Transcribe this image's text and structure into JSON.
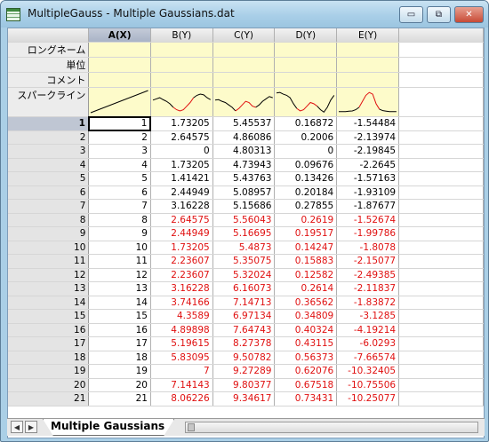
{
  "window": {
    "title": "MultipleGauss - Multiple Gaussians.dat",
    "minimize_glyph": "▭",
    "restore_glyph": "⧉",
    "close_glyph": "✕"
  },
  "columns": [
    "A(X)",
    "B(Y)",
    "C(Y)",
    "D(Y)",
    "E(Y)"
  ],
  "meta_labels": {
    "long_name": "ロングネーム",
    "units": "単位",
    "comment": "コメント",
    "sparkline": "スパークライン"
  },
  "sparklines": {
    "line_color": "#e01010",
    "B": [
      0.6,
      0.65,
      0.7,
      0.62,
      0.55,
      0.45,
      0.3,
      0.2,
      0.15,
      0.2,
      0.35,
      0.5,
      0.7,
      0.8,
      0.85,
      0.82,
      0.7,
      0.62
    ],
    "C": [
      0.6,
      0.62,
      0.55,
      0.5,
      0.4,
      0.3,
      0.15,
      0.25,
      0.4,
      0.55,
      0.5,
      0.35,
      0.3,
      0.4,
      0.55,
      0.65,
      0.75,
      0.7
    ],
    "D": [
      0.9,
      0.92,
      0.85,
      0.8,
      0.7,
      0.45,
      0.25,
      0.15,
      0.2,
      0.35,
      0.5,
      0.45,
      0.35,
      0.2,
      0.1,
      0.3,
      0.6,
      0.8
    ],
    "E": [
      0.12,
      0.12,
      0.12,
      0.14,
      0.15,
      0.2,
      0.3,
      0.55,
      0.8,
      0.92,
      0.85,
      0.45,
      0.22,
      0.16,
      0.14,
      0.12,
      0.12,
      0.12
    ]
  },
  "rows": [
    {
      "n": "1",
      "a": "1",
      "b": "1.73205",
      "c": "5.45537",
      "d": "0.16872",
      "e": "-1.54484",
      "red": false
    },
    {
      "n": "2",
      "a": "2",
      "b": "2.64575",
      "c": "4.86086",
      "d": "0.2006",
      "e": "-2.13974",
      "red": false
    },
    {
      "n": "3",
      "a": "3",
      "b": "0",
      "c": "4.80313",
      "d": "0",
      "e": "-2.19845",
      "red": false
    },
    {
      "n": "4",
      "a": "4",
      "b": "1.73205",
      "c": "4.73943",
      "d": "0.09676",
      "e": "-2.2645",
      "red": false
    },
    {
      "n": "5",
      "a": "5",
      "b": "1.41421",
      "c": "5.43763",
      "d": "0.13426",
      "e": "-1.57163",
      "red": false
    },
    {
      "n": "6",
      "a": "6",
      "b": "2.44949",
      "c": "5.08957",
      "d": "0.20184",
      "e": "-1.93109",
      "red": false
    },
    {
      "n": "7",
      "a": "7",
      "b": "3.16228",
      "c": "5.15686",
      "d": "0.27855",
      "e": "-1.87677",
      "red": false
    },
    {
      "n": "8",
      "a": "8",
      "b": "2.64575",
      "c": "5.56043",
      "d": "0.2619",
      "e": "-1.52674",
      "red": true
    },
    {
      "n": "9",
      "a": "9",
      "b": "2.44949",
      "c": "5.16695",
      "d": "0.19517",
      "e": "-1.99786",
      "red": true
    },
    {
      "n": "10",
      "a": "10",
      "b": "1.73205",
      "c": "5.4873",
      "d": "0.14247",
      "e": "-1.8078",
      "red": true
    },
    {
      "n": "11",
      "a": "11",
      "b": "2.23607",
      "c": "5.35075",
      "d": "0.15883",
      "e": "-2.15077",
      "red": true
    },
    {
      "n": "12",
      "a": "12",
      "b": "2.23607",
      "c": "5.32024",
      "d": "0.12582",
      "e": "-2.49385",
      "red": true
    },
    {
      "n": "13",
      "a": "13",
      "b": "3.16228",
      "c": "6.16073",
      "d": "0.2614",
      "e": "-2.11837",
      "red": true
    },
    {
      "n": "14",
      "a": "14",
      "b": "3.74166",
      "c": "7.14713",
      "d": "0.36562",
      "e": "-1.83872",
      "red": true
    },
    {
      "n": "15",
      "a": "15",
      "b": "4.3589",
      "c": "6.97134",
      "d": "0.34809",
      "e": "-3.1285",
      "red": true
    },
    {
      "n": "16",
      "a": "16",
      "b": "4.89898",
      "c": "7.64743",
      "d": "0.40324",
      "e": "-4.19214",
      "red": true
    },
    {
      "n": "17",
      "a": "17",
      "b": "5.19615",
      "c": "8.27378",
      "d": "0.43115",
      "e": "-6.0293",
      "red": true
    },
    {
      "n": "18",
      "a": "18",
      "b": "5.83095",
      "c": "9.50782",
      "d": "0.56373",
      "e": "-7.66574",
      "red": true
    },
    {
      "n": "19",
      "a": "19",
      "b": "7",
      "c": "9.27289",
      "d": "0.62076",
      "e": "-10.32405",
      "red": true
    },
    {
      "n": "20",
      "a": "20",
      "b": "7.14143",
      "c": "9.80377",
      "d": "0.67518",
      "e": "-10.75506",
      "red": true
    },
    {
      "n": "21",
      "a": "21",
      "b": "8.06226",
      "c": "9.34617",
      "d": "0.73431",
      "e": "-10.25077",
      "red": true
    }
  ],
  "sheet_tab": "Multiple  Gaussians",
  "nav": {
    "prev": "◀",
    "next": "▶"
  },
  "accent_colors": {
    "selected_header": "#b3bccd",
    "meta_fill": "#fdfbca",
    "highlight_text": "#e01010"
  }
}
